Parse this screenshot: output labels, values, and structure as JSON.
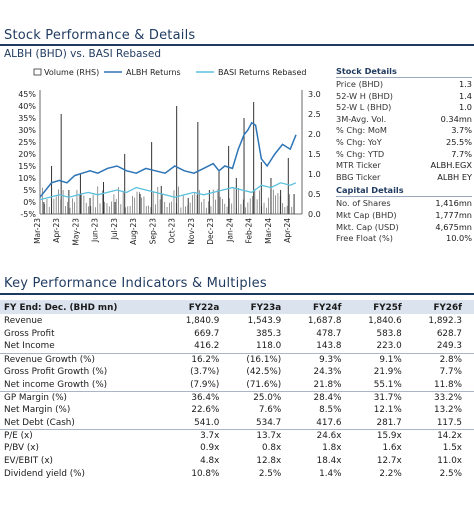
{
  "section1_title": "Stock Performance & Details",
  "chart_title": "ALBH (BHD) vs. BASI Rebased",
  "chart_data": {
    "type": "line",
    "legend": [
      "Volume (RHS)",
      "ALBH Returns",
      "BASI Returns Rebased"
    ],
    "legend_position": "top",
    "categories": [
      "Mar-23",
      "Apr-23",
      "May-23",
      "Jun-23",
      "Jul-23",
      "Aug-23",
      "Sep-23",
      "Oct-23",
      "Nov-23",
      "Dec-23",
      "Jan-24",
      "Feb-24",
      "Mar-24",
      "Apr-24"
    ],
    "y_left_ticks": [
      "45%",
      "40%",
      "35%",
      "30%",
      "25%",
      "20%",
      "15%",
      "10%",
      "5%",
      "0%",
      "-5%"
    ],
    "y_right_ticks": [
      "3.0",
      "2.5",
      "2.0",
      "1.5",
      "1.0",
      "0.5",
      "0.0"
    ],
    "ylim_left": [
      -5,
      45
    ],
    "ylim_right": [
      0,
      3
    ],
    "series": [
      {
        "name": "ALBH Returns",
        "x": [
          0,
          0.3,
          0.6,
          1,
          1.4,
          1.8,
          2.2,
          2.6,
          3,
          3.5,
          4,
          4.5,
          5,
          5.5,
          6,
          6.5,
          7,
          7.5,
          8,
          8.5,
          9,
          9.3,
          9.6,
          10,
          10.3,
          10.6,
          10.8,
          11,
          11.2,
          11.5,
          11.8,
          12.2,
          12.6,
          13,
          13.3
        ],
        "values": [
          2,
          5,
          8,
          9,
          8,
          11,
          12,
          13,
          12,
          14,
          15,
          13,
          12,
          14,
          13,
          12,
          15,
          13,
          12,
          14,
          16,
          13,
          15,
          14,
          22,
          28,
          30,
          33,
          32,
          18,
          15,
          20,
          24,
          22,
          28
        ]
      },
      {
        "name": "BASI Returns Rebased",
        "x": [
          0,
          0.5,
          1,
          1.5,
          2,
          2.5,
          3,
          3.5,
          4,
          4.5,
          5,
          5.5,
          6,
          6.5,
          7,
          7.5,
          8,
          8.5,
          9,
          9.5,
          10,
          10.5,
          11,
          11.5,
          12,
          12.5,
          13,
          13.3
        ],
        "values": [
          1,
          2,
          3,
          2,
          3,
          4,
          3,
          4,
          5,
          4,
          6,
          5,
          4,
          3,
          2,
          3,
          4,
          3,
          4,
          5,
          6,
          5,
          4,
          7,
          6,
          8,
          7,
          8
        ]
      },
      {
        "name": "Volume (RHS)",
        "x": [
          0.2,
          0.6,
          1.1,
          1.5,
          2.1,
          2.6,
          3.3,
          3.9,
          4.4,
          5.2,
          5.8,
          6.3,
          7.1,
          7.7,
          8.2,
          8.8,
          9.3,
          9.8,
          10.2,
          10.6,
          11.1,
          11.5,
          12,
          12.5,
          12.9,
          13.2
        ],
        "values": [
          0.3,
          1.2,
          2.5,
          0.6,
          1.0,
          0.4,
          0.8,
          0.3,
          1.5,
          0.5,
          1.8,
          0.7,
          2.7,
          0.4,
          2.3,
          0.6,
          1.1,
          1.7,
          0.9,
          2.4,
          2.8,
          1.3,
          0.9,
          0.6,
          1.4,
          0.5
        ]
      }
    ]
  },
  "stock_details": {
    "title": "Stock Details",
    "rows": [
      [
        "Price (BHD)",
        "1.3"
      ],
      [
        "52-W H (BHD)",
        "1.4"
      ],
      [
        "52-W L (BHD)",
        "1.0"
      ],
      [
        "3M-Avg. Vol.",
        "0.34mn"
      ],
      [
        "% Chg: MoM",
        "3.7%"
      ],
      [
        "% Chg: YoY",
        "25.5%"
      ],
      [
        "% Chg: YTD",
        "7.7%"
      ],
      [
        "MTR Ticker",
        "ALBH.EGX"
      ],
      [
        "BBG Ticker",
        "ALBH EY"
      ]
    ]
  },
  "capital_details": {
    "title": "Capital Details",
    "rows": [
      [
        "No. of Shares",
        "1,416mn"
      ],
      [
        "Mkt Cap (BHD)",
        "1,777mn"
      ],
      [
        "Mkt. Cap (USD)",
        "4,675mn"
      ],
      [
        "Free Float (%)",
        "10.0%"
      ]
    ]
  },
  "section2_title": "Key Performance Indicators & Multiples",
  "kpi": {
    "headers": [
      "FY End: Dec. (BHD mn)",
      "FY22a",
      "FY23a",
      "FY24f",
      "FY25f",
      "FY26f"
    ],
    "rows": [
      {
        "label": "Revenue",
        "values": [
          "1,840.9",
          "1,543.9",
          "1,687.8",
          "1,840.6",
          "1,892.3"
        ],
        "grp": false
      },
      {
        "label": "Gross Profit",
        "values": [
          "669.7",
          "385.3",
          "478.7",
          "583.8",
          "628.7"
        ],
        "grp": false
      },
      {
        "label": "Net Income",
        "values": [
          "416.2",
          "118.0",
          "143.8",
          "223.0",
          "249.3"
        ],
        "grp": false
      },
      {
        "label": "Revenue Growth (%)",
        "values": [
          "16.2%",
          "(16.1%)",
          "9.3%",
          "9.1%",
          "2.8%"
        ],
        "grp": true
      },
      {
        "label": "Gross Profit Growth (%)",
        "values": [
          "(3.7%)",
          "(42.5%)",
          "24.3%",
          "21.9%",
          "7.7%"
        ],
        "grp": false
      },
      {
        "label": "Net income Growth (%)",
        "values": [
          "(7.9%)",
          "(71.6%)",
          "21.8%",
          "55.1%",
          "11.8%"
        ],
        "grp": false
      },
      {
        "label": "GP Margin (%)",
        "values": [
          "36.4%",
          "25.0%",
          "28.4%",
          "31.7%",
          "33.2%"
        ],
        "grp": true
      },
      {
        "label": "Net Margin (%)",
        "values": [
          "22.6%",
          "7.6%",
          "8.5%",
          "12.1%",
          "13.2%"
        ],
        "grp": false
      },
      {
        "label": "Net Debt (Cash)",
        "values": [
          "541.0",
          "534.7",
          "417.6",
          "281.7",
          "117.5"
        ],
        "grp": false
      },
      {
        "label": "P/E (x)",
        "values": [
          "3.7x",
          "13.7x",
          "24.6x",
          "15.9x",
          "14.2x"
        ],
        "grp": true
      },
      {
        "label": "P/BV (x)",
        "values": [
          "0.9x",
          "0.8x",
          "1.8x",
          "1.6x",
          "1.5x"
        ],
        "grp": false
      },
      {
        "label": "EV/EBIT (x)",
        "values": [
          "4.8x",
          "12.8x",
          "18.4x",
          "12.7x",
          "11.0x"
        ],
        "grp": false
      },
      {
        "label": "Dividend yield (%)",
        "values": [
          "10.8%",
          "2.5%",
          "1.4%",
          "2.2%",
          "2.5%"
        ],
        "grp": false
      }
    ]
  },
  "colors": {
    "accent": "#1f3a5f",
    "albh": "#2e75b6",
    "basi": "#5bc0de",
    "volume": "#333333"
  }
}
